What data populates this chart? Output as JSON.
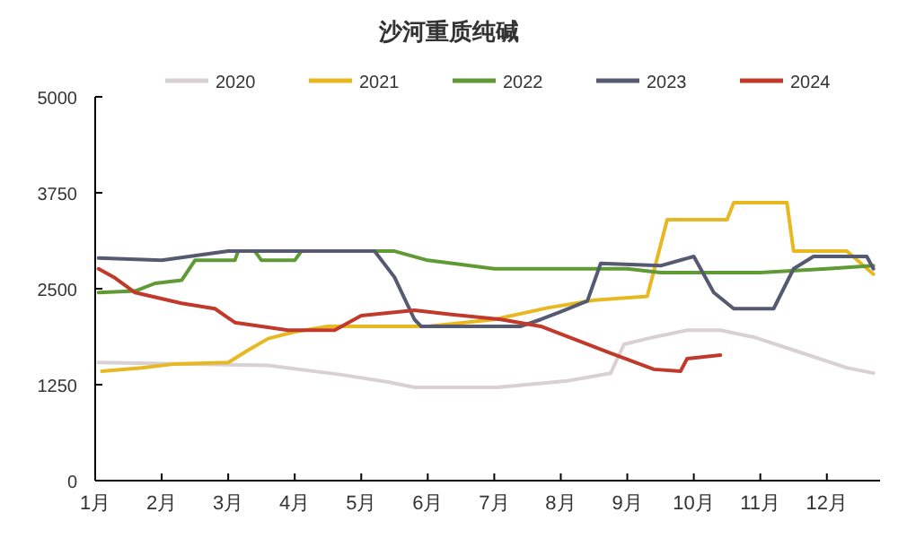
{
  "chart_data": {
    "type": "line",
    "title": "沙河重质纯碱",
    "xlim": [
      1,
      12.8
    ],
    "ylim": [
      0,
      5000
    ],
    "yticks": [
      0,
      1250,
      2500,
      3750,
      5000
    ],
    "xticks": [
      {
        "value": 1,
        "label": "1月"
      },
      {
        "value": 2,
        "label": "2月"
      },
      {
        "value": 3,
        "label": "3月"
      },
      {
        "value": 4,
        "label": "4月"
      },
      {
        "value": 5,
        "label": "5月"
      },
      {
        "value": 6,
        "label": "6月"
      },
      {
        "value": 7,
        "label": "7月"
      },
      {
        "value": 8,
        "label": "8月"
      },
      {
        "value": 9,
        "label": "9月"
      },
      {
        "value": 10,
        "label": "10月"
      },
      {
        "value": 11,
        "label": "11月"
      },
      {
        "value": 12,
        "label": "12月"
      }
    ],
    "legend": "top",
    "grid": false,
    "marker": "none",
    "line_style": "solid",
    "series": [
      {
        "name": "2020",
        "color": "#d9d0d3",
        "x": [
          1.05,
          3.6,
          4.7,
          5.4,
          5.8,
          7.05,
          8.1,
          8.75,
          8.95,
          9.4,
          9.9,
          10.4,
          10.9,
          11.5,
          12.3,
          12.7
        ],
        "values": [
          1540,
          1500,
          1380,
          1285,
          1215,
          1215,
          1300,
          1400,
          1775,
          1870,
          1960,
          1960,
          1870,
          1700,
          1470,
          1400
        ]
      },
      {
        "name": "2021",
        "color": "#e8b820",
        "x": [
          1.1,
          1.7,
          2.2,
          3.0,
          3.3,
          3.6,
          4.0,
          4.5,
          6.0,
          7.0,
          7.8,
          8.5,
          9.3,
          9.6,
          10.5,
          10.6,
          11.4,
          11.5,
          12.3,
          12.7
        ],
        "values": [
          1425,
          1470,
          1520,
          1540,
          1700,
          1850,
          1940,
          2010,
          2010,
          2100,
          2250,
          2350,
          2400,
          3400,
          3400,
          3620,
          3620,
          2990,
          2990,
          2690
        ]
      },
      {
        "name": "2022",
        "color": "#5f9a35",
        "x": [
          1.05,
          1.6,
          1.9,
          2.3,
          2.5,
          3.1,
          3.15,
          3.4,
          3.5,
          4.0,
          4.1,
          5.0,
          5.5,
          6.0,
          7.0,
          8.0,
          9.0,
          9.5,
          11.0,
          12.0,
          12.7
        ],
        "values": [
          2450,
          2470,
          2570,
          2610,
          2870,
          2870,
          2990,
          2990,
          2870,
          2870,
          2990,
          2990,
          2990,
          2870,
          2760,
          2760,
          2760,
          2710,
          2710,
          2760,
          2800
        ]
      },
      {
        "name": "2023",
        "color": "#555a70",
        "x": [
          1.05,
          2.0,
          3.0,
          4.0,
          5.2,
          5.5,
          5.8,
          5.9,
          7.0,
          7.4,
          7.7,
          8.0,
          8.4,
          8.6,
          9.5,
          10.0,
          10.3,
          10.6,
          11.2,
          11.5,
          11.8,
          12.6,
          12.7
        ],
        "values": [
          2900,
          2870,
          2990,
          2990,
          2990,
          2650,
          2100,
          2010,
          2010,
          2010,
          2100,
          2200,
          2340,
          2830,
          2800,
          2920,
          2450,
          2240,
          2240,
          2760,
          2920,
          2920,
          2760
        ]
      },
      {
        "name": "2024",
        "color": "#c0392b",
        "x": [
          1.05,
          1.3,
          1.6,
          2.3,
          2.8,
          3.1,
          3.9,
          4.6,
          5.0,
          5.8,
          6.3,
          7.1,
          7.7,
          8.75,
          9.4,
          9.8,
          9.9,
          10.4
        ],
        "values": [
          2760,
          2640,
          2450,
          2310,
          2240,
          2060,
          1960,
          1960,
          2150,
          2220,
          2170,
          2100,
          2010,
          1660,
          1450,
          1425,
          1590,
          1635
        ]
      }
    ]
  }
}
